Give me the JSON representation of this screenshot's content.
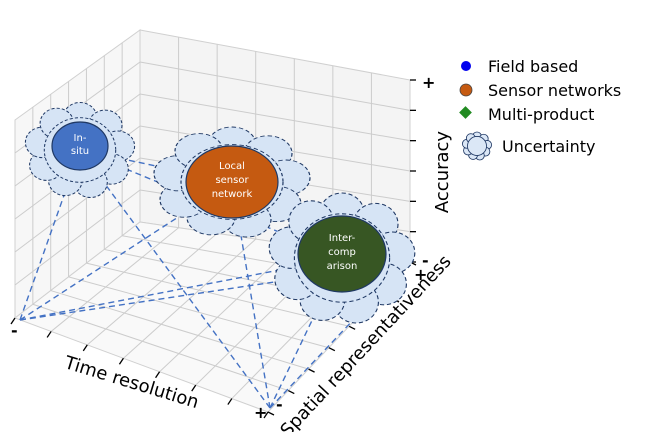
{
  "axes": {
    "x_label": "Time resolution",
    "y_label": "Spatial representativeness",
    "z_label": "Accuracy",
    "x_minus": "-",
    "x_plus": "+",
    "y_minus": "-",
    "y_plus": "+",
    "z_minus": "-",
    "z_plus": "+"
  },
  "nodes": [
    {
      "id": "in-situ",
      "lines": [
        "In-",
        "situ"
      ],
      "category": "Field based",
      "color": "#4472c4"
    },
    {
      "id": "local-sensor-network",
      "lines": [
        "Local",
        "sensor",
        "network"
      ],
      "category": "Sensor networks",
      "color": "#c55a11"
    },
    {
      "id": "inter-comparison",
      "lines": [
        "Inter-",
        "comp",
        "arison"
      ],
      "category": "Multi-product",
      "color": "#375623"
    }
  ],
  "legend": [
    {
      "id": "field-based",
      "label": "Field based",
      "marker": "circle",
      "color": "#0000ee"
    },
    {
      "id": "sensor-networks",
      "label": "Sensor networks",
      "marker": "circle",
      "color": "#c55a11"
    },
    {
      "id": "multi-product",
      "label": "Multi-product",
      "marker": "diamond",
      "color": "#228b22"
    },
    {
      "id": "uncertainty",
      "label": "Uncertainty",
      "marker": "cloud",
      "color": "#dbe7f6"
    }
  ],
  "colors": {
    "dashed_line": "#4472c4",
    "cloud_fill": "#d6e4f5",
    "cloud_stroke": "#1f3864",
    "grid": "#c8c8c8",
    "pane": "#f2f2f2"
  }
}
